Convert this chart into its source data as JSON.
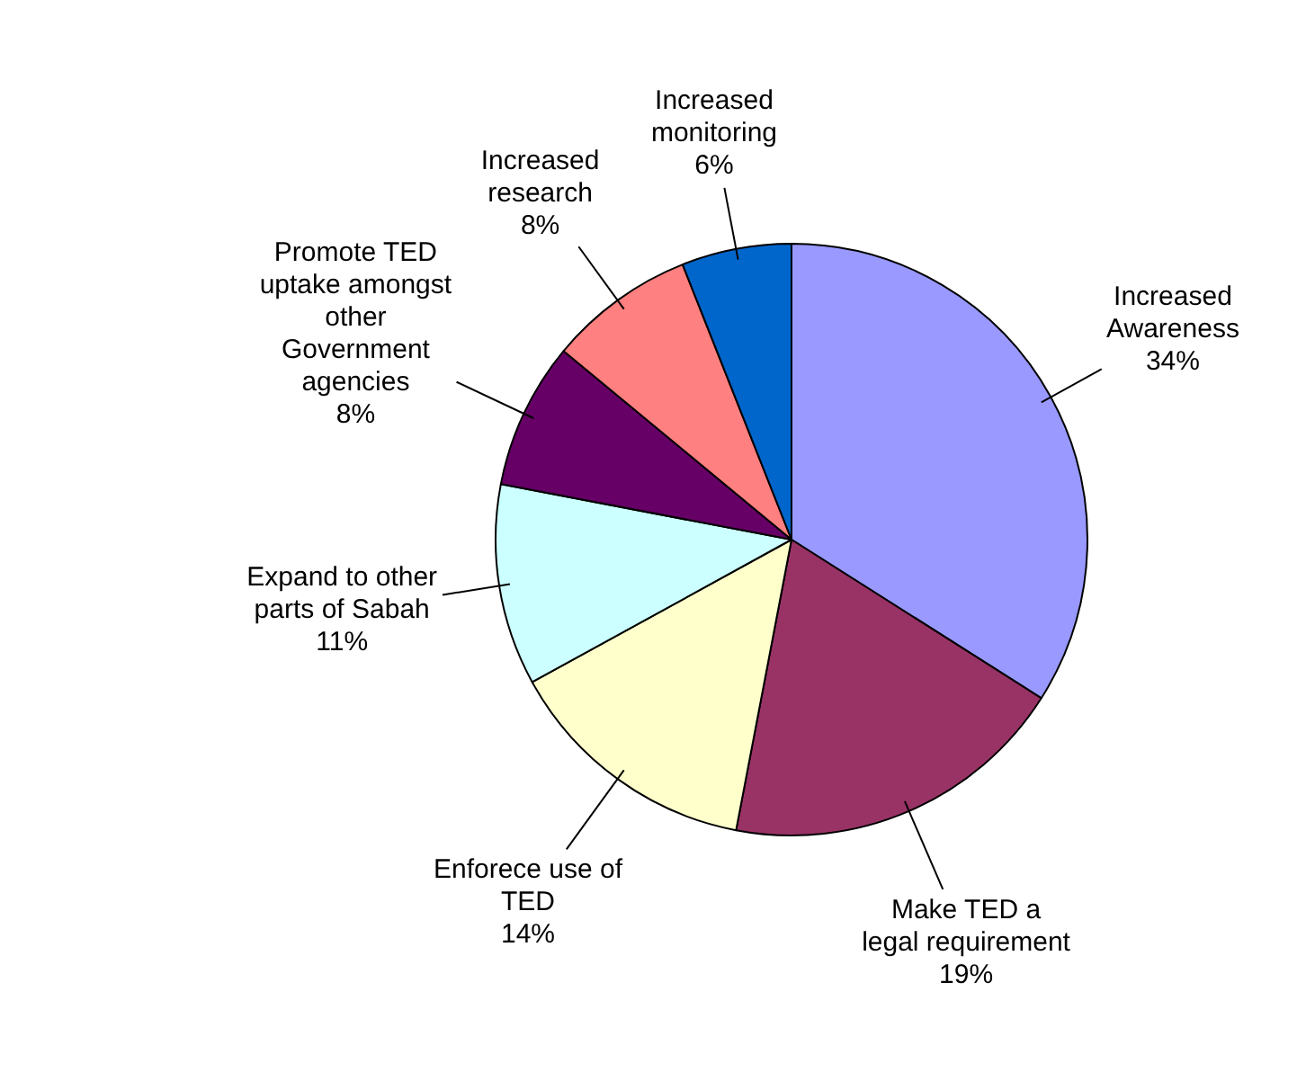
{
  "chart_data": {
    "type": "pie",
    "categories": [
      "Increased Awareness",
      "Make TED a legal requirement",
      "Enforece use of TED",
      "Expand to other parts of Sabah",
      "Promote TED uptake amongst other Government agencies",
      "Increased research",
      "Increased monitoring"
    ],
    "values": [
      34,
      19,
      14,
      11,
      8,
      8,
      6
    ],
    "value_labels": [
      "34%",
      "19%",
      "14%",
      "11%",
      "8%",
      "8%",
      "6%"
    ],
    "colors": [
      "#9999ff",
      "#993366",
      "#ffffcc",
      "#ccffff",
      "#660066",
      "#ff8080",
      "#0066cc"
    ],
    "legend": false
  }
}
